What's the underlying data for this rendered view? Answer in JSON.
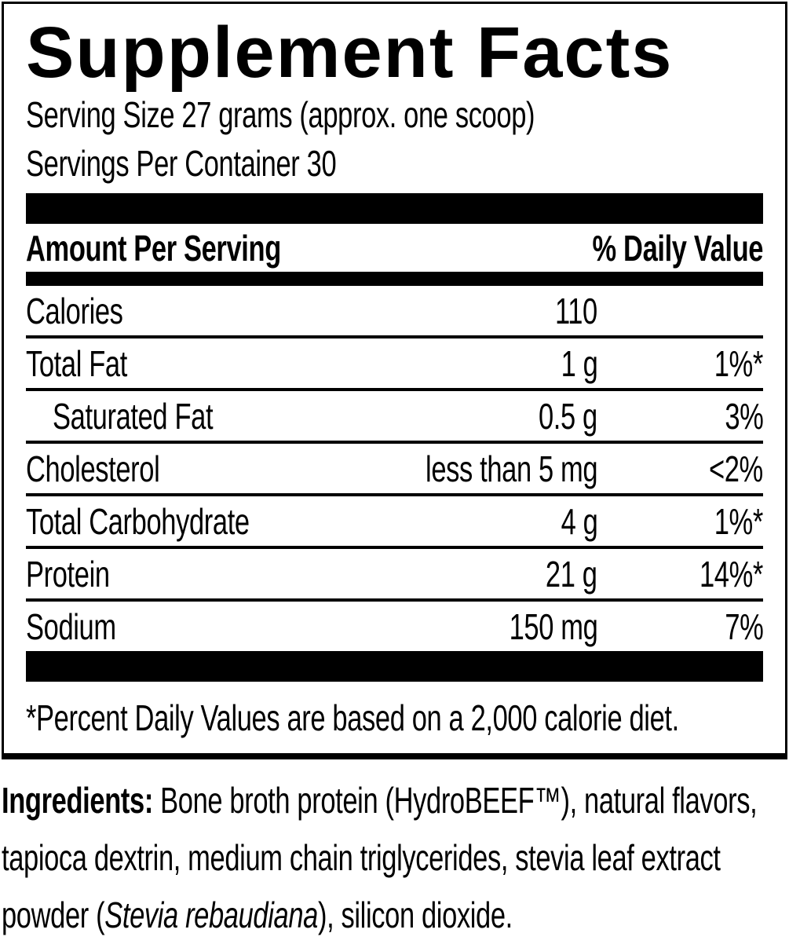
{
  "label": {
    "title": "Supplement Facts",
    "serving_size": "Serving Size 27 grams (approx. one scoop)",
    "servings_per_container": "Servings Per Container 30",
    "header": {
      "amount_per_serving": "Amount Per Serving",
      "daily_value": "% Daily Value"
    },
    "rows": [
      {
        "name": "Calories",
        "amount": "110",
        "dv": "",
        "indent": false
      },
      {
        "name": "Total Fat",
        "amount": "1 g",
        "dv": "1%*",
        "indent": false
      },
      {
        "name": "Saturated Fat",
        "amount": "0.5 g",
        "dv": "3%",
        "indent": true
      },
      {
        "name": "Cholesterol",
        "amount": "less than 5 mg",
        "dv": "<2%",
        "indent": false
      },
      {
        "name": "Total Carbohydrate",
        "amount": "4 g",
        "dv": "1%*",
        "indent": false
      },
      {
        "name": "Protein",
        "amount": "21 g",
        "dv": "14%*",
        "indent": false
      },
      {
        "name": "Sodium",
        "amount": "150 mg",
        "dv": "7%",
        "indent": false
      }
    ],
    "footnote": "*Percent Daily Values are based on a 2,000 calorie diet."
  },
  "ingredients": {
    "label": "Ingredients:",
    "text_before_italic": " Bone broth protein (HydroBEEF™), natural flavors, tapioca dextrin, medium chain triglycerides, stevia leaf extract powder (",
    "italic": "Stevia rebaudiana",
    "text_after_italic": "), silicon dioxide."
  },
  "colors": {
    "text": "#000000",
    "background": "#ffffff"
  }
}
